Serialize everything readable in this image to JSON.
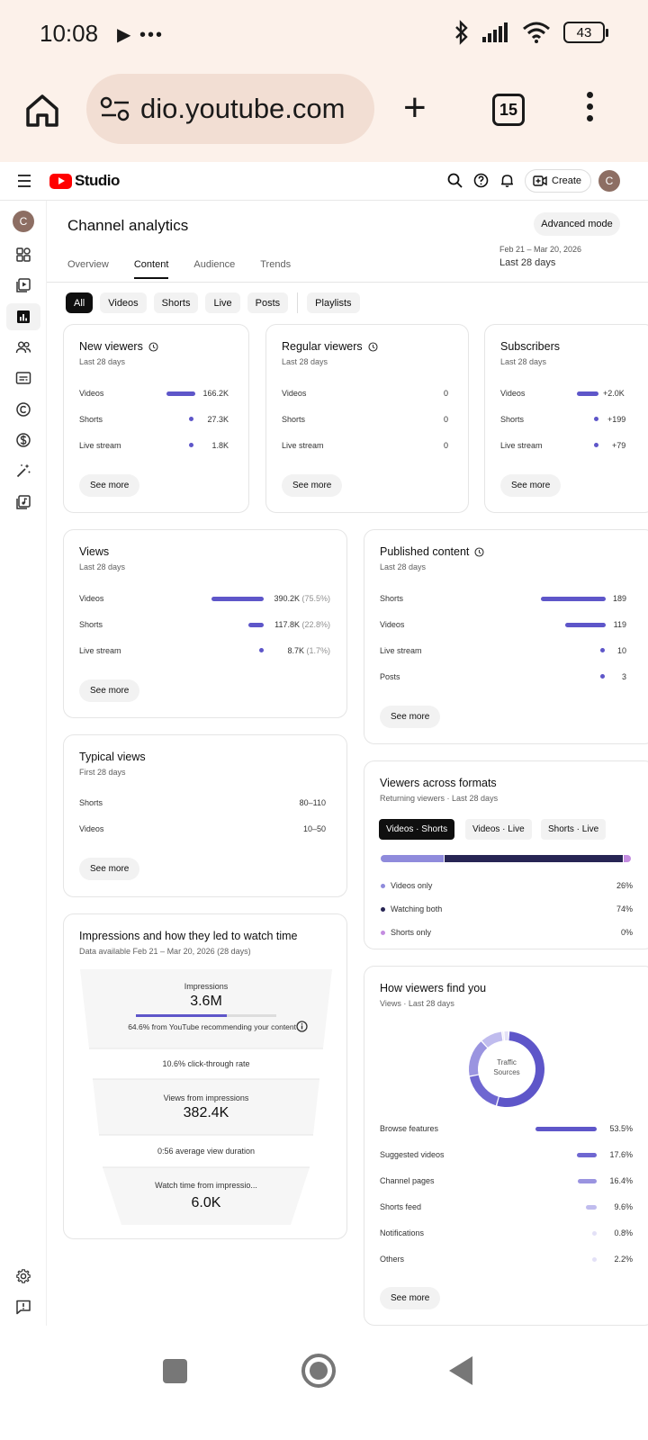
{
  "status_bar": {
    "time": "10:08",
    "left_icons": "▶ •••",
    "battery": "43"
  },
  "browser": {
    "url": "dio.youtube.com",
    "tab_count": "15"
  },
  "studio": {
    "logo_text": "Studio",
    "create_label": "Create",
    "avatar_letter": "C"
  },
  "page": {
    "title": "Channel analytics",
    "advanced_mode": "Advanced mode",
    "date_range": "Feb 21 – Mar 20, 2026",
    "date_preset": "Last 28 days",
    "tabs": [
      "Overview",
      "Content",
      "Audience",
      "Trends"
    ],
    "active_tab": "Content",
    "chips": [
      "All",
      "Videos",
      "Shorts",
      "Live",
      "Posts",
      "Playlists"
    ]
  },
  "cards": {
    "new_viewers": {
      "title": "New viewers",
      "subtitle": "Last 28 days",
      "rows": [
        {
          "label": "Videos",
          "value": "166.2K"
        },
        {
          "label": "Shorts",
          "value": "27.3K"
        },
        {
          "label": "Live stream",
          "value": "1.8K"
        }
      ],
      "see_more": "See more"
    },
    "regular_viewers": {
      "title": "Regular viewers",
      "subtitle": "Last 28 days",
      "rows": [
        {
          "label": "Videos",
          "value": "0"
        },
        {
          "label": "Shorts",
          "value": "0"
        },
        {
          "label": "Live stream",
          "value": "0"
        }
      ],
      "see_more": "See more"
    },
    "subscribers": {
      "title": "Subscribers",
      "subtitle": "Last 28 days",
      "rows": [
        {
          "label": "Videos",
          "value": "+2.0K"
        },
        {
          "label": "Shorts",
          "value": "+199"
        },
        {
          "label": "Live stream",
          "value": "+79"
        }
      ],
      "see_more": "See more"
    },
    "views": {
      "title": "Views",
      "subtitle": "Last 28 days",
      "rows": [
        {
          "label": "Videos",
          "value": "390.2K",
          "pct": "(75.5%)"
        },
        {
          "label": "Shorts",
          "value": "117.8K",
          "pct": "(22.8%)"
        },
        {
          "label": "Live stream",
          "value": "8.7K",
          "pct": "(1.7%)"
        }
      ],
      "see_more": "See more"
    },
    "published": {
      "title": "Published content",
      "subtitle": "Last 28 days",
      "rows": [
        {
          "label": "Shorts",
          "value": "189"
        },
        {
          "label": "Videos",
          "value": "119"
        },
        {
          "label": "Live stream",
          "value": "10"
        },
        {
          "label": "Posts",
          "value": "3"
        }
      ],
      "see_more": "See more"
    },
    "typical_views": {
      "title": "Typical views",
      "subtitle": "First 28 days",
      "rows": [
        {
          "label": "Shorts",
          "value": "80–110"
        },
        {
          "label": "Videos",
          "value": "10–50"
        }
      ],
      "see_more": "See more"
    },
    "impressions": {
      "title": "Impressions and how they led to watch time",
      "subtitle": "Data available Feb 21 – Mar 20, 2026 (28 days)",
      "impressions_label": "Impressions",
      "impressions_value": "3.6M",
      "impressions_note": "64.6% from YouTube recommending your content",
      "impressions_share": 0.646,
      "ctr": "10.6% click-through rate",
      "views_label": "Views from impressions",
      "views_value": "382.4K",
      "avd": "0:56 average view duration",
      "watch_label": "Watch time from impressio...",
      "watch_value": "6.0K"
    },
    "formats": {
      "title": "Viewers across formats",
      "subtitle": "Returning viewers · Last 28 days",
      "segments": [
        "Videos · Shorts",
        "Videos · Live",
        "Shorts · Live"
      ],
      "legend": [
        {
          "label": "Videos only",
          "value": "26%"
        },
        {
          "label": "Watching both",
          "value": "74%"
        },
        {
          "label": "Shorts only",
          "value": "0%"
        }
      ]
    },
    "traffic": {
      "title": "How viewers find you",
      "subtitle": "Views · Last 28 days",
      "donut_label_1": "Traffic",
      "donut_label_2": "Sources",
      "rows": [
        {
          "label": "Browse features",
          "value": "53.5%"
        },
        {
          "label": "Suggested videos",
          "value": "17.6%"
        },
        {
          "label": "Channel pages",
          "value": "16.4%"
        },
        {
          "label": "Shorts feed",
          "value": "9.6%"
        },
        {
          "label": "Notifications",
          "value": "0.8%"
        },
        {
          "label": "Others",
          "value": "2.2%"
        }
      ],
      "see_more": "See more"
    }
  },
  "colors": {
    "accent": "#5e56c9",
    "dark_segment": "#272554",
    "light_segment": "#8f8bdc",
    "pink_segment": "#c48de0"
  }
}
